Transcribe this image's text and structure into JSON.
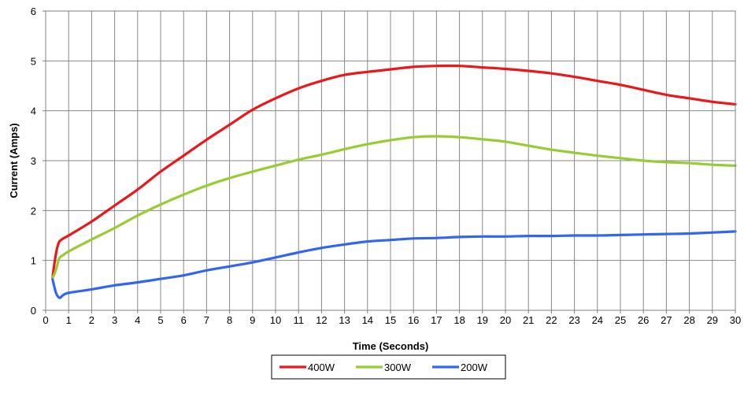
{
  "chart_data": {
    "type": "line",
    "title": "",
    "xlabel": "Time (Seconds)",
    "ylabel": "Current (Amps)",
    "xlim": [
      0,
      30
    ],
    "ylim": [
      0,
      6
    ],
    "xticks": [
      0,
      1,
      2,
      3,
      4,
      5,
      6,
      7,
      8,
      9,
      10,
      11,
      12,
      13,
      14,
      15,
      16,
      17,
      18,
      19,
      20,
      21,
      22,
      23,
      24,
      25,
      26,
      27,
      28,
      29,
      30
    ],
    "yticks": [
      0,
      1,
      2,
      3,
      4,
      5,
      6
    ],
    "grid": true,
    "legend": "bottom",
    "series": [
      {
        "name": "400W",
        "color": "#e8181b",
        "x": [
          0.3,
          0.4,
          0.5,
          0.6,
          0.8,
          1,
          2,
          3,
          4,
          5,
          6,
          7,
          8,
          9,
          10,
          11,
          12,
          13,
          14,
          15,
          16,
          17,
          18,
          19,
          20,
          21,
          22,
          23,
          24,
          25,
          26,
          27,
          28,
          29,
          30
        ],
        "values": [
          0.65,
          1.0,
          1.25,
          1.38,
          1.45,
          1.5,
          1.78,
          2.1,
          2.42,
          2.78,
          3.1,
          3.42,
          3.72,
          4.02,
          4.25,
          4.45,
          4.6,
          4.72,
          4.78,
          4.83,
          4.88,
          4.9,
          4.9,
          4.87,
          4.84,
          4.8,
          4.75,
          4.68,
          4.6,
          4.52,
          4.42,
          4.32,
          4.25,
          4.18,
          4.13
        ]
      },
      {
        "name": "300W",
        "color": "#99cc33",
        "x": [
          0.3,
          0.4,
          0.5,
          0.6,
          0.8,
          1,
          2,
          3,
          4,
          5,
          6,
          7,
          8,
          9,
          10,
          11,
          12,
          13,
          14,
          15,
          16,
          17,
          18,
          19,
          20,
          21,
          22,
          23,
          24,
          25,
          26,
          27,
          28,
          29,
          30
        ],
        "values": [
          0.65,
          0.75,
          0.9,
          1.05,
          1.12,
          1.18,
          1.42,
          1.65,
          1.9,
          2.12,
          2.32,
          2.5,
          2.65,
          2.78,
          2.9,
          3.02,
          3.12,
          3.23,
          3.33,
          3.41,
          3.47,
          3.49,
          3.47,
          3.43,
          3.38,
          3.3,
          3.22,
          3.16,
          3.1,
          3.05,
          3.0,
          2.97,
          2.95,
          2.92,
          2.9
        ]
      },
      {
        "name": "200W",
        "color": "#3366ee",
        "x": [
          0.3,
          0.45,
          0.6,
          0.75,
          1,
          2,
          3,
          4,
          5,
          6,
          7,
          8,
          9,
          10,
          11,
          12,
          13,
          14,
          15,
          16,
          17,
          18,
          19,
          20,
          21,
          22,
          23,
          24,
          25,
          26,
          27,
          28,
          29,
          30
        ],
        "values": [
          0.62,
          0.35,
          0.25,
          0.3,
          0.35,
          0.42,
          0.5,
          0.56,
          0.63,
          0.7,
          0.8,
          0.88,
          0.96,
          1.06,
          1.16,
          1.25,
          1.32,
          1.38,
          1.41,
          1.44,
          1.45,
          1.47,
          1.48,
          1.48,
          1.49,
          1.49,
          1.5,
          1.5,
          1.51,
          1.52,
          1.53,
          1.54,
          1.56,
          1.58
        ]
      }
    ]
  }
}
